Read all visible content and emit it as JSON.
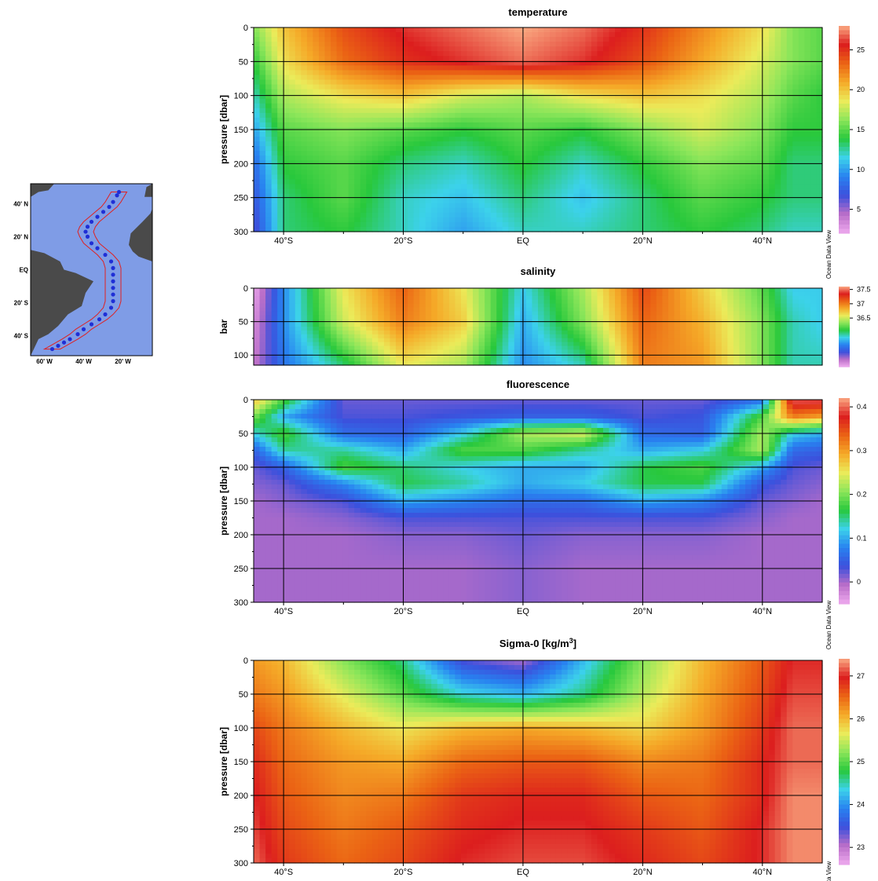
{
  "watermark": "Ocean Data View",
  "colors": {
    "frame": "#000000",
    "gridline": "#000000",
    "map_ocean": "#7f9ce6",
    "map_land": "#4a4a4a",
    "station": "#1f2fd6",
    "cruise_box": "#e02020"
  },
  "inset_map": {
    "lat_labels": [
      "40' N",
      "20' N",
      "EQ",
      "20' S",
      "40' S"
    ],
    "lon_labels": [
      "60' W",
      "40' W",
      "20' W"
    ],
    "stations": [
      {
        "lon": -22,
        "lat": 47
      },
      {
        "lon": -23,
        "lat": 45
      },
      {
        "lon": -25,
        "lat": 41
      },
      {
        "lon": -27,
        "lat": 38
      },
      {
        "lon": -30,
        "lat": 35
      },
      {
        "lon": -33,
        "lat": 32
      },
      {
        "lon": -36,
        "lat": 29
      },
      {
        "lon": -38,
        "lat": 26
      },
      {
        "lon": -39,
        "lat": 23
      },
      {
        "lon": -38,
        "lat": 20
      },
      {
        "lon": -36,
        "lat": 16
      },
      {
        "lon": -33,
        "lat": 13
      },
      {
        "lon": -29,
        "lat": 9
      },
      {
        "lon": -26,
        "lat": 5
      },
      {
        "lon": -25,
        "lat": 1
      },
      {
        "lon": -25,
        "lat": -3
      },
      {
        "lon": -25,
        "lat": -7
      },
      {
        "lon": -25,
        "lat": -11
      },
      {
        "lon": -25,
        "lat": -15
      },
      {
        "lon": -25,
        "lat": -19
      },
      {
        "lon": -26,
        "lat": -23
      },
      {
        "lon": -29,
        "lat": -27
      },
      {
        "lon": -32,
        "lat": -30
      },
      {
        "lon": -36,
        "lat": -33
      },
      {
        "lon": -40,
        "lat": -36
      },
      {
        "lon": -43,
        "lat": -39
      },
      {
        "lon": -47,
        "lat": -42
      },
      {
        "lon": -50,
        "lat": -44
      },
      {
        "lon": -53,
        "lat": -46
      },
      {
        "lon": -56,
        "lat": -48
      }
    ]
  },
  "chart_data": [
    {
      "type": "heatmap",
      "title": "temperature",
      "ylabel": "pressure [dbar]",
      "xlim": [
        -45,
        50
      ],
      "ylim": [
        300,
        0
      ],
      "x_ticks": [
        {
          "value": -40,
          "label": "40°S"
        },
        {
          "value": -20,
          "label": "20°S"
        },
        {
          "value": 0,
          "label": "EQ"
        },
        {
          "value": 20,
          "label": "20°N"
        },
        {
          "value": 40,
          "label": "40°N"
        }
      ],
      "y_ticks": [
        0,
        50,
        100,
        150,
        200,
        250,
        300
      ],
      "gridlines_x": [
        -40,
        -20,
        0,
        20,
        40
      ],
      "gridlines_y": [
        50,
        100,
        150,
        200,
        250
      ],
      "colorbar": {
        "min": 2,
        "max": 28,
        "ticks": [
          5,
          10,
          15,
          20,
          25
        ]
      },
      "grid_x": [
        -45,
        -40,
        -30,
        -20,
        -10,
        0,
        10,
        20,
        30,
        40,
        45,
        50
      ],
      "grid_y": [
        0,
        50,
        100,
        150,
        200,
        250,
        300
      ],
      "values": [
        [
          16,
          20,
          24,
          26,
          27,
          28,
          27,
          25,
          22,
          19,
          16,
          15
        ],
        [
          14,
          19,
          23,
          25,
          26,
          27,
          26,
          24,
          21,
          18,
          16,
          15
        ],
        [
          12,
          17,
          19,
          20,
          18,
          17,
          19,
          20,
          19,
          17,
          15,
          14
        ],
        [
          10,
          15,
          16,
          15,
          14,
          15,
          14,
          16,
          18,
          16,
          14,
          14
        ],
        [
          8,
          14,
          15,
          13,
          12,
          14,
          12,
          14,
          16,
          15,
          13,
          13
        ],
        [
          7,
          13,
          15,
          12,
          11,
          13,
          11,
          13,
          15,
          14,
          13,
          13
        ],
        [
          6,
          13,
          14,
          12,
          10,
          12,
          12,
          13,
          14,
          13,
          12,
          12
        ]
      ]
    },
    {
      "type": "heatmap",
      "title": "salinity",
      "ylabel": "bar",
      "xlim": [
        -45,
        50
      ],
      "ylim": [
        115,
        0
      ],
      "x_ticks": [],
      "y_ticks": [
        0,
        50,
        100
      ],
      "gridlines_x": [
        -40,
        -20,
        0,
        20,
        40
      ],
      "gridlines_y": [
        50,
        100
      ],
      "colorbar": {
        "min": 34.8,
        "max": 37.6,
        "ticks": [
          36.5,
          37,
          37.5
        ]
      },
      "grid_x": [
        -45,
        -40,
        -30,
        -20,
        -10,
        0,
        10,
        20,
        30,
        40,
        45,
        50
      ],
      "grid_y": [
        0,
        50,
        115
      ],
      "values": [
        [
          34.8,
          35.6,
          36.6,
          37.1,
          36.6,
          35.8,
          36.4,
          37.2,
          36.7,
          36.2,
          35.8,
          35.8
        ],
        [
          34.9,
          35.6,
          36.5,
          37.0,
          36.7,
          35.7,
          36.3,
          37.1,
          36.8,
          36.3,
          35.9,
          35.8
        ],
        [
          35.0,
          35.5,
          36.0,
          36.6,
          36.4,
          35.6,
          35.9,
          37.0,
          36.9,
          36.3,
          35.9,
          35.9
        ]
      ]
    },
    {
      "type": "heatmap",
      "title": "fluorescence",
      "ylabel": "pressure [dbar]",
      "xlim": [
        -45,
        50
      ],
      "ylim": [
        300,
        0
      ],
      "x_ticks": [
        {
          "value": -40,
          "label": "40°S"
        },
        {
          "value": -20,
          "label": "20°S"
        },
        {
          "value": 0,
          "label": "EQ"
        },
        {
          "value": 20,
          "label": "20°N"
        },
        {
          "value": 40,
          "label": "40°N"
        }
      ],
      "y_ticks": [
        0,
        50,
        100,
        150,
        200,
        250,
        300
      ],
      "gridlines_x": [
        -40,
        -20,
        0,
        20,
        40
      ],
      "gridlines_y": [
        50,
        100,
        150,
        200,
        250
      ],
      "colorbar": {
        "min": -0.05,
        "max": 0.42,
        "ticks": [
          0,
          0.1,
          0.2,
          0.3,
          0.4
        ]
      },
      "grid_x": [
        -45,
        -40,
        -30,
        -20,
        -10,
        0,
        10,
        20,
        30,
        40,
        45,
        50
      ],
      "grid_y": [
        0,
        25,
        50,
        75,
        100,
        125,
        150,
        175,
        200,
        250,
        300
      ],
      "values": [
        [
          0.28,
          0.18,
          0.02,
          0.02,
          0.02,
          0.02,
          0.02,
          0.02,
          0.02,
          0.06,
          0.4,
          0.4
        ],
        [
          0.2,
          0.1,
          0.03,
          0.03,
          0.04,
          0.05,
          0.05,
          0.03,
          0.04,
          0.18,
          0.32,
          0.3
        ],
        [
          0.12,
          0.18,
          0.06,
          0.05,
          0.12,
          0.22,
          0.24,
          0.06,
          0.05,
          0.22,
          0.12,
          0.1
        ],
        [
          0.05,
          0.14,
          0.14,
          0.1,
          0.18,
          0.18,
          0.14,
          0.1,
          0.12,
          0.22,
          0.06,
          0.05
        ],
        [
          0.02,
          0.05,
          0.18,
          0.15,
          0.12,
          0.1,
          0.1,
          0.16,
          0.18,
          0.1,
          0.03,
          0.02
        ],
        [
          0.01,
          0.02,
          0.08,
          0.16,
          0.14,
          0.1,
          0.12,
          0.16,
          0.16,
          0.04,
          0.02,
          0.01
        ],
        [
          0.0,
          0.01,
          0.03,
          0.1,
          0.08,
          0.06,
          0.06,
          0.1,
          0.08,
          0.02,
          0.01,
          0.0
        ],
        [
          0.0,
          0.0,
          0.01,
          0.03,
          0.03,
          0.03,
          0.03,
          0.03,
          0.03,
          0.01,
          0.0,
          0.0
        ],
        [
          0.0,
          0.0,
          0.0,
          0.01,
          0.01,
          0.02,
          0.01,
          0.01,
          0.01,
          0.0,
          0.0,
          0.0
        ],
        [
          0.0,
          0.0,
          0.0,
          0.0,
          0.0,
          0.01,
          0.0,
          0.0,
          0.0,
          0.0,
          0.0,
          0.0
        ],
        [
          0.0,
          0.0,
          0.0,
          0.0,
          0.0,
          0.01,
          0.0,
          0.0,
          0.0,
          0.0,
          0.0,
          0.0
        ]
      ]
    },
    {
      "type": "heatmap",
      "title": "Sigma-0 [kg/m",
      "title_superscript": "3",
      "title_suffix": "]",
      "ylabel": "pressure [dbar]",
      "xlim": [
        -45,
        50
      ],
      "ylim": [
        300,
        0
      ],
      "x_ticks": [
        {
          "value": -40,
          "label": "40°S"
        },
        {
          "value": -20,
          "label": "20°S"
        },
        {
          "value": 0,
          "label": "EQ"
        },
        {
          "value": 20,
          "label": "20°N"
        },
        {
          "value": 40,
          "label": "40°N"
        }
      ],
      "y_ticks": [
        0,
        50,
        100,
        150,
        200,
        250,
        300
      ],
      "gridlines_x": [
        -40,
        -20,
        0,
        20,
        40
      ],
      "gridlines_y": [
        50,
        100,
        150,
        200,
        250
      ],
      "colorbar": {
        "min": 22.6,
        "max": 27.4,
        "ticks": [
          23,
          24,
          25,
          26,
          27
        ]
      },
      "grid_x": [
        -45,
        -40,
        -30,
        -20,
        -10,
        0,
        10,
        20,
        30,
        40,
        45,
        50
      ],
      "grid_y": [
        0,
        50,
        100,
        150,
        200,
        250,
        300
      ],
      "values": [
        [
          26.2,
          26.0,
          25.2,
          24.6,
          23.4,
          23.1,
          24.2,
          25.2,
          26.0,
          26.6,
          27.0,
          27.0
        ],
        [
          26.4,
          26.2,
          25.6,
          25.0,
          24.4,
          24.2,
          24.6,
          25.4,
          26.1,
          26.7,
          27.1,
          27.1
        ],
        [
          26.7,
          26.4,
          26.0,
          25.7,
          26.0,
          26.1,
          26.0,
          25.8,
          26.2,
          26.8,
          27.2,
          27.2
        ],
        [
          26.9,
          26.5,
          26.2,
          26.1,
          26.5,
          26.6,
          26.6,
          26.3,
          26.4,
          26.9,
          27.2,
          27.2
        ],
        [
          27.0,
          26.6,
          26.3,
          26.4,
          26.8,
          26.9,
          26.9,
          26.6,
          26.5,
          26.9,
          27.3,
          27.3
        ],
        [
          27.1,
          26.7,
          26.4,
          26.6,
          26.9,
          27.0,
          27.0,
          26.8,
          26.6,
          27.0,
          27.3,
          27.3
        ],
        [
          27.2,
          26.8,
          26.5,
          26.7,
          27.0,
          27.1,
          27.1,
          26.9,
          26.7,
          27.0,
          27.3,
          27.3
        ]
      ]
    }
  ]
}
